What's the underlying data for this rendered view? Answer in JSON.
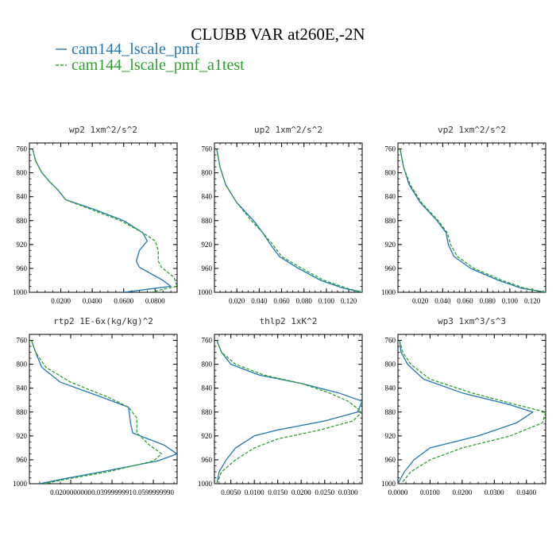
{
  "title": "CLUBB VAR at260E,-2N",
  "legend": [
    {
      "label": "cam144_lscale_pmf",
      "color": "#1f77b4",
      "dash": false
    },
    {
      "label": "cam144_lscale_pmf_a1test",
      "color": "#2ca02c",
      "dash": true
    }
  ],
  "chart_data": [
    {
      "type": "line",
      "title": "wp2  1xm^2/s^2",
      "xlim": [
        0,
        0.094
      ],
      "ylim": [
        1000,
        750
      ],
      "x_ticks": [
        {
          "v": 0.02,
          "t": "0.0200"
        },
        {
          "v": 0.04,
          "t": "0.0400"
        },
        {
          "v": 0.06,
          "t": "0.0600"
        },
        {
          "v": 0.08,
          "t": "0.0800"
        }
      ],
      "y_ticks": [
        760,
        800,
        840,
        880,
        920,
        960,
        1000
      ],
      "series": [
        {
          "name": "cam144_lscale_pmf",
          "x": [
            0.002,
            0.004,
            0.008,
            0.013,
            0.018,
            0.023,
            0.04,
            0.06,
            0.072,
            0.075,
            0.07,
            0.068,
            0.07,
            0.085,
            0.09,
            0.075,
            0.06
          ],
          "y": [
            760,
            780,
            800,
            815,
            828,
            845,
            860,
            880,
            900,
            914,
            930,
            948,
            958,
            980,
            990,
            995,
            1000
          ]
        },
        {
          "name": "cam144_lscale_pmf_a1test",
          "x": [
            0.002,
            0.004,
            0.008,
            0.013,
            0.018,
            0.023,
            0.038,
            0.058,
            0.072,
            0.08,
            0.082,
            0.082,
            0.084,
            0.092,
            0.094,
            0.085,
            0.078
          ],
          "y": [
            760,
            780,
            800,
            815,
            828,
            845,
            860,
            880,
            900,
            914,
            930,
            948,
            958,
            975,
            990,
            995,
            1000
          ]
        }
      ]
    },
    {
      "type": "line",
      "title": "up2  1xm^2/s^2",
      "xlim": [
        0,
        0.132
      ],
      "ylim": [
        1000,
        750
      ],
      "x_ticks": [
        {
          "v": 0.02,
          "t": "0.020"
        },
        {
          "v": 0.04,
          "t": "0.040"
        },
        {
          "v": 0.06,
          "t": "0.060"
        },
        {
          "v": 0.08,
          "t": "0.080"
        },
        {
          "v": 0.1,
          "t": "0.100"
        },
        {
          "v": 0.12,
          "t": "0.120"
        }
      ],
      "y_ticks": [
        760,
        800,
        840,
        880,
        920,
        960,
        1000
      ],
      "series": [
        {
          "name": "cam144_lscale_pmf",
          "x": [
            0.002,
            0.005,
            0.01,
            0.02,
            0.035,
            0.043,
            0.05,
            0.058,
            0.075,
            0.095,
            0.115,
            0.132
          ],
          "y": [
            760,
            790,
            820,
            850,
            880,
            900,
            920,
            940,
            960,
            980,
            993,
            1000
          ]
        },
        {
          "name": "cam144_lscale_pmf_a1test",
          "x": [
            0.002,
            0.005,
            0.01,
            0.02,
            0.033,
            0.043,
            0.052,
            0.06,
            0.078,
            0.098,
            0.118,
            0.132
          ],
          "y": [
            760,
            790,
            820,
            850,
            880,
            900,
            920,
            940,
            960,
            980,
            993,
            1000
          ]
        }
      ]
    },
    {
      "type": "line",
      "title": "vp2  1xm^2/s^2",
      "xlim": [
        0,
        0.132
      ],
      "ylim": [
        1000,
        750
      ],
      "x_ticks": [
        {
          "v": 0.02,
          "t": "0.020"
        },
        {
          "v": 0.04,
          "t": "0.040"
        },
        {
          "v": 0.06,
          "t": "0.060"
        },
        {
          "v": 0.08,
          "t": "0.080"
        },
        {
          "v": 0.1,
          "t": "0.100"
        },
        {
          "v": 0.12,
          "t": "0.120"
        }
      ],
      "y_ticks": [
        760,
        800,
        840,
        880,
        920,
        960,
        1000
      ],
      "series": [
        {
          "name": "cam144_lscale_pmf",
          "x": [
            0.002,
            0.005,
            0.01,
            0.02,
            0.035,
            0.043,
            0.045,
            0.05,
            0.065,
            0.09,
            0.11,
            0.132
          ],
          "y": [
            760,
            790,
            820,
            850,
            880,
            900,
            920,
            940,
            960,
            980,
            993,
            1000
          ]
        },
        {
          "name": "cam144_lscale_pmf_a1test",
          "x": [
            0.002,
            0.005,
            0.011,
            0.021,
            0.036,
            0.044,
            0.047,
            0.053,
            0.068,
            0.093,
            0.113,
            0.132
          ],
          "y": [
            760,
            790,
            820,
            850,
            880,
            900,
            920,
            940,
            960,
            980,
            993,
            1000
          ]
        }
      ]
    },
    {
      "type": "line",
      "title": "rtp2  1E-6x(kg/kg)^2",
      "xlim": [
        0,
        0.0715
      ],
      "ylim": [
        1000,
        750
      ],
      "x_ticks": [
        {
          "v": 0.02,
          "t": "0.0200000000"
        },
        {
          "v": 0.04,
          "t": "0.0399999991"
        },
        {
          "v": 0.06,
          "t": "0.0599999990"
        }
      ],
      "y_ticks": [
        760,
        800,
        840,
        880,
        920,
        960,
        1000
      ],
      "series": [
        {
          "name": "cam144_lscale_pmf",
          "x": [
            0.001,
            0.003,
            0.006,
            0.015,
            0.035,
            0.048,
            0.049,
            0.05,
            0.065,
            0.0715,
            0.062,
            0.035,
            0.015,
            0.005
          ],
          "y": [
            760,
            780,
            805,
            830,
            855,
            872,
            900,
            915,
            935,
            950,
            962,
            980,
            993,
            1000
          ]
        },
        {
          "name": "cam144_lscale_pmf_a1test",
          "x": [
            0.001,
            0.003,
            0.008,
            0.02,
            0.038,
            0.048,
            0.052,
            0.052,
            0.058,
            0.064,
            0.06,
            0.038,
            0.017,
            0.007
          ],
          "y": [
            760,
            780,
            805,
            830,
            855,
            872,
            890,
            915,
            935,
            950,
            962,
            980,
            993,
            1000
          ]
        }
      ]
    },
    {
      "type": "line",
      "title": "thlp2  1xK^2",
      "xlim": [
        0.0015,
        0.033
      ],
      "ylim": [
        1000,
        750
      ],
      "x_ticks": [
        {
          "v": 0.005,
          "t": "0.0050"
        },
        {
          "v": 0.01,
          "t": "0.0100"
        },
        {
          "v": 0.015,
          "t": "0.0150"
        },
        {
          "v": 0.02,
          "t": "0.0200"
        },
        {
          "v": 0.025,
          "t": "0.0250"
        },
        {
          "v": 0.03,
          "t": "0.0300"
        }
      ],
      "y_ticks": [
        760,
        800,
        840,
        880,
        920,
        960,
        1000
      ],
      "series": [
        {
          "name": "cam144_lscale_pmf",
          "x": [
            0.002,
            0.003,
            0.005,
            0.011,
            0.02,
            0.028,
            0.033,
            0.032,
            0.025,
            0.015,
            0.01,
            0.006,
            0.004,
            0.0025,
            0.002
          ],
          "y": [
            760,
            780,
            800,
            818,
            832,
            848,
            862,
            880,
            895,
            910,
            920,
            940,
            960,
            980,
            1000
          ]
        },
        {
          "name": "cam144_lscale_pmf_a1test",
          "x": [
            0.002,
            0.003,
            0.006,
            0.012,
            0.02,
            0.026,
            0.03,
            0.033,
            0.031,
            0.024,
            0.015,
            0.01,
            0.006,
            0.003,
            0.002
          ],
          "y": [
            760,
            780,
            800,
            818,
            832,
            848,
            862,
            880,
            895,
            910,
            925,
            940,
            960,
            980,
            1000
          ]
        }
      ]
    },
    {
      "type": "line",
      "title": "wp3  1xm^3/s^3",
      "xlim": [
        0,
        0.046
      ],
      "ylim": [
        1000,
        750
      ],
      "x_ticks": [
        {
          "v": 0.0,
          "t": "0.0000"
        },
        {
          "v": 0.01,
          "t": "0.0100"
        },
        {
          "v": 0.02,
          "t": "0.0200"
        },
        {
          "v": 0.03,
          "t": "0.0300"
        },
        {
          "v": 0.04,
          "t": "0.0400"
        }
      ],
      "y_ticks": [
        760,
        800,
        840,
        880,
        920,
        960,
        1000
      ],
      "series": [
        {
          "name": "cam144_lscale_pmf",
          "x": [
            0.0005,
            0.001,
            0.003,
            0.008,
            0.02,
            0.035,
            0.042,
            0.037,
            0.025,
            0.01,
            0.005,
            0.002,
            0.0
          ],
          "y": [
            760,
            780,
            800,
            825,
            848,
            868,
            880,
            898,
            920,
            940,
            960,
            980,
            1000
          ]
        },
        {
          "name": "cam144_lscale_pmf_a1test",
          "x": [
            0.0005,
            0.0015,
            0.004,
            0.01,
            0.023,
            0.037,
            0.046,
            0.045,
            0.035,
            0.02,
            0.01,
            0.004,
            0.001
          ],
          "y": [
            760,
            780,
            800,
            825,
            848,
            868,
            880,
            898,
            920,
            940,
            960,
            980,
            1000
          ]
        }
      ]
    }
  ]
}
